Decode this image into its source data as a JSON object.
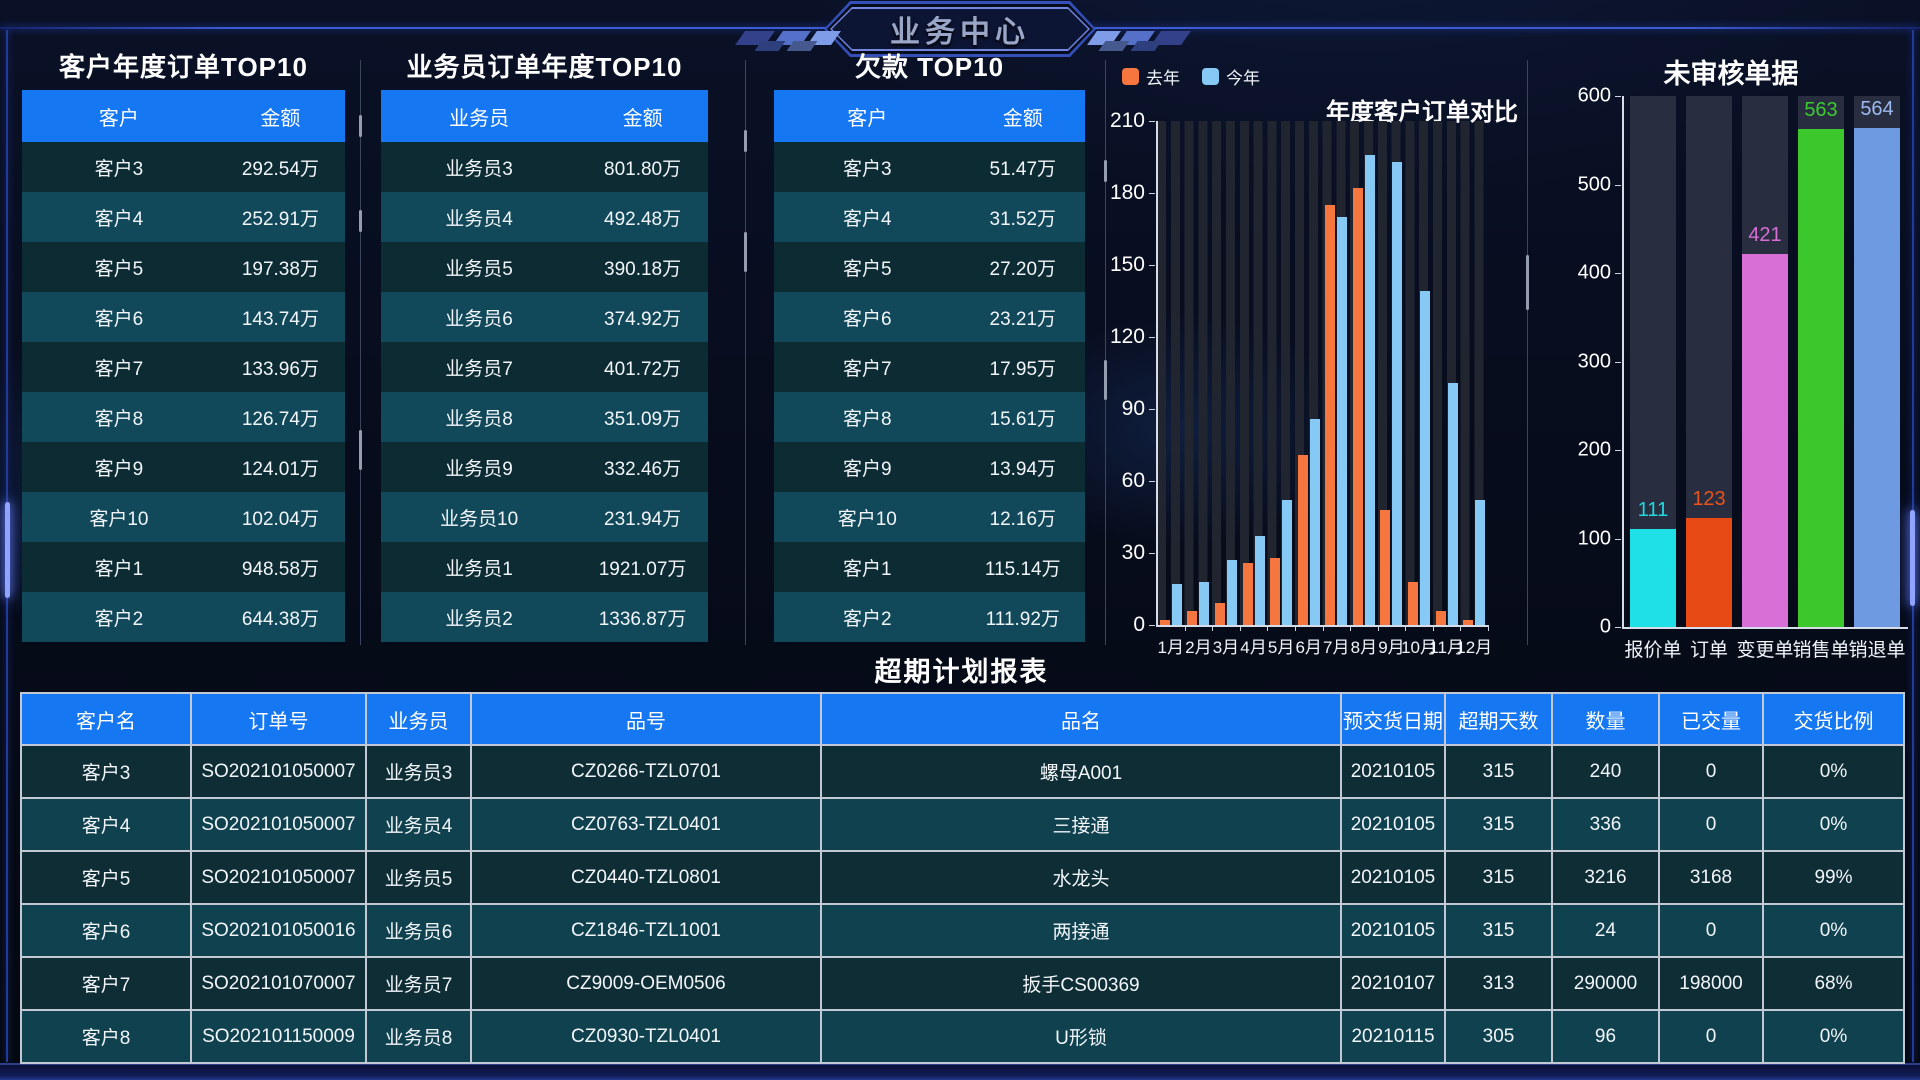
{
  "page": {
    "badge": "业务中心"
  },
  "rank_tables": [
    {
      "title": "客户年度订单TOP10",
      "columns": [
        "客户",
        "金额"
      ],
      "rows": [
        [
          "客户3",
          "292.54万"
        ],
        [
          "客户4",
          "252.91万"
        ],
        [
          "客户5",
          "197.38万"
        ],
        [
          "客户6",
          "143.74万"
        ],
        [
          "客户7",
          "133.96万"
        ],
        [
          "客户8",
          "126.74万"
        ],
        [
          "客户9",
          "124.01万"
        ],
        [
          "客户10",
          "102.04万"
        ],
        [
          "客户1",
          "948.58万"
        ],
        [
          "客户2",
          "644.38万"
        ]
      ]
    },
    {
      "title": "业务员订单年度TOP10",
      "columns": [
        "业务员",
        "金额"
      ],
      "rows": [
        [
          "业务员3",
          "801.80万"
        ],
        [
          "业务员4",
          "492.48万"
        ],
        [
          "业务员5",
          "390.18万"
        ],
        [
          "业务员6",
          "374.92万"
        ],
        [
          "业务员7",
          "401.72万"
        ],
        [
          "业务员8",
          "351.09万"
        ],
        [
          "业务员9",
          "332.46万"
        ],
        [
          "业务员10",
          "231.94万"
        ],
        [
          "业务员1",
          "1921.07万"
        ],
        [
          "业务员2",
          "1336.87万"
        ]
      ]
    },
    {
      "title": "欠款 TOP10",
      "columns": [
        "客户",
        "金额"
      ],
      "rows": [
        [
          "客户3",
          "51.47万"
        ],
        [
          "客户4",
          "31.52万"
        ],
        [
          "客户5",
          "27.20万"
        ],
        [
          "客户6",
          "23.21万"
        ],
        [
          "客户7",
          "17.95万"
        ],
        [
          "客户8",
          "15.61万"
        ],
        [
          "客户9",
          "13.94万"
        ],
        [
          "客户10",
          "12.16万"
        ],
        [
          "客户1",
          "115.14万"
        ],
        [
          "客户2",
          "111.92万"
        ]
      ]
    }
  ],
  "overdue_report": {
    "title": "超期计划报表",
    "columns": [
      "客户名",
      "订单号",
      "业务员",
      "品号",
      "品名",
      "预交货日期",
      "超期天数",
      "数量",
      "已交量",
      "交货比例"
    ],
    "rows": [
      [
        "客户3",
        "SO202101050007",
        "业务员3",
        "CZ0266-TZL0701",
        "螺母A001",
        "20210105",
        "315",
        "240",
        "0",
        "0%"
      ],
      [
        "客户4",
        "SO202101050007",
        "业务员4",
        "CZ0763-TZL0401",
        "三接通",
        "20210105",
        "315",
        "336",
        "0",
        "0%"
      ],
      [
        "客户5",
        "SO202101050007",
        "业务员5",
        "CZ0440-TZL0801",
        "水龙头",
        "20210105",
        "315",
        "3216",
        "3168",
        "99%"
      ],
      [
        "客户6",
        "SO202101050016",
        "业务员6",
        "CZ1846-TZL1001",
        "两接通",
        "20210105",
        "315",
        "24",
        "0",
        "0%"
      ],
      [
        "客户7",
        "SO202101070007",
        "业务员7",
        "CZ9009-OEM0506",
        "扳手CS00369",
        "20210107",
        "313",
        "290000",
        "198000",
        "68%"
      ],
      [
        "客户8",
        "SO202101150009",
        "业务员8",
        "CZ0930-TZL0401",
        "U形锁",
        "20210115",
        "305",
        "96",
        "0",
        "0%"
      ]
    ]
  },
  "chart_data": [
    {
      "type": "bar",
      "title": "年度客户订单对比",
      "legend_position": "top-left",
      "categories": [
        "1月",
        "2月",
        "3月",
        "4月",
        "5月",
        "6月",
        "7月",
        "8月",
        "9月",
        "10月",
        "11月",
        "12月"
      ],
      "series": [
        {
          "name": "去年",
          "color": "#f5763f",
          "values": [
            2,
            6,
            9,
            26,
            28,
            71,
            175,
            182,
            48,
            18,
            6,
            2
          ]
        },
        {
          "name": "今年",
          "color": "#86c9f5",
          "values": [
            17,
            18,
            27,
            37,
            52,
            86,
            170,
            196,
            193,
            139,
            101,
            52
          ]
        }
      ],
      "ylim": [
        0,
        210
      ],
      "yticks": [
        0,
        30,
        60,
        90,
        120,
        150,
        180,
        210
      ],
      "grid": false,
      "background_stripes": true
    },
    {
      "type": "bar",
      "title": "未审核单据",
      "categories": [
        "报价单",
        "订单",
        "变更单",
        "销售单",
        "销退单"
      ],
      "values": [
        111,
        123,
        421,
        563,
        564
      ],
      "colors": [
        "#1fe0e6",
        "#e84a15",
        "#d76fd7",
        "#3cc72d",
        "#6d9ae0"
      ],
      "label_colors": [
        "#1fd9df",
        "#e8541c",
        "#d76fd7",
        "#3bcb2f",
        "#9db9ef"
      ],
      "ylim": [
        0,
        600
      ],
      "yticks": [
        0,
        100,
        200,
        300,
        400,
        500,
        600
      ],
      "value_labels": true,
      "column_backdrop": true
    }
  ]
}
